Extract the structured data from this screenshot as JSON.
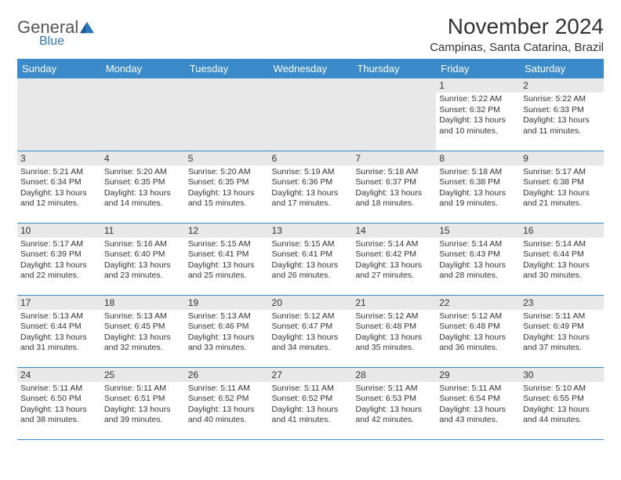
{
  "logo": {
    "general": "General",
    "blue": "Blue"
  },
  "title": "November 2024",
  "location": "Campinas, Santa Catarina, Brazil",
  "header_bg": "#3b8bca",
  "header_fg": "#ffffff",
  "daynum_bg": "#e8e8e8",
  "border_color": "#3b8bca",
  "dow": [
    "Sunday",
    "Monday",
    "Tuesday",
    "Wednesday",
    "Thursday",
    "Friday",
    "Saturday"
  ],
  "weeks": [
    [
      null,
      null,
      null,
      null,
      null,
      {
        "n": "1",
        "sr": "Sunrise: 5:22 AM",
        "ss": "Sunset: 6:32 PM",
        "d1": "Daylight: 13 hours",
        "d2": "and 10 minutes."
      },
      {
        "n": "2",
        "sr": "Sunrise: 5:22 AM",
        "ss": "Sunset: 6:33 PM",
        "d1": "Daylight: 13 hours",
        "d2": "and 11 minutes."
      }
    ],
    [
      {
        "n": "3",
        "sr": "Sunrise: 5:21 AM",
        "ss": "Sunset: 6:34 PM",
        "d1": "Daylight: 13 hours",
        "d2": "and 12 minutes."
      },
      {
        "n": "4",
        "sr": "Sunrise: 5:20 AM",
        "ss": "Sunset: 6:35 PM",
        "d1": "Daylight: 13 hours",
        "d2": "and 14 minutes."
      },
      {
        "n": "5",
        "sr": "Sunrise: 5:20 AM",
        "ss": "Sunset: 6:35 PM",
        "d1": "Daylight: 13 hours",
        "d2": "and 15 minutes."
      },
      {
        "n": "6",
        "sr": "Sunrise: 5:19 AM",
        "ss": "Sunset: 6:36 PM",
        "d1": "Daylight: 13 hours",
        "d2": "and 17 minutes."
      },
      {
        "n": "7",
        "sr": "Sunrise: 5:18 AM",
        "ss": "Sunset: 6:37 PM",
        "d1": "Daylight: 13 hours",
        "d2": "and 18 minutes."
      },
      {
        "n": "8",
        "sr": "Sunrise: 5:18 AM",
        "ss": "Sunset: 6:38 PM",
        "d1": "Daylight: 13 hours",
        "d2": "and 19 minutes."
      },
      {
        "n": "9",
        "sr": "Sunrise: 5:17 AM",
        "ss": "Sunset: 6:38 PM",
        "d1": "Daylight: 13 hours",
        "d2": "and 21 minutes."
      }
    ],
    [
      {
        "n": "10",
        "sr": "Sunrise: 5:17 AM",
        "ss": "Sunset: 6:39 PM",
        "d1": "Daylight: 13 hours",
        "d2": "and 22 minutes."
      },
      {
        "n": "11",
        "sr": "Sunrise: 5:16 AM",
        "ss": "Sunset: 6:40 PM",
        "d1": "Daylight: 13 hours",
        "d2": "and 23 minutes."
      },
      {
        "n": "12",
        "sr": "Sunrise: 5:15 AM",
        "ss": "Sunset: 6:41 PM",
        "d1": "Daylight: 13 hours",
        "d2": "and 25 minutes."
      },
      {
        "n": "13",
        "sr": "Sunrise: 5:15 AM",
        "ss": "Sunset: 6:41 PM",
        "d1": "Daylight: 13 hours",
        "d2": "and 26 minutes."
      },
      {
        "n": "14",
        "sr": "Sunrise: 5:14 AM",
        "ss": "Sunset: 6:42 PM",
        "d1": "Daylight: 13 hours",
        "d2": "and 27 minutes."
      },
      {
        "n": "15",
        "sr": "Sunrise: 5:14 AM",
        "ss": "Sunset: 6:43 PM",
        "d1": "Daylight: 13 hours",
        "d2": "and 28 minutes."
      },
      {
        "n": "16",
        "sr": "Sunrise: 5:14 AM",
        "ss": "Sunset: 6:44 PM",
        "d1": "Daylight: 13 hours",
        "d2": "and 30 minutes."
      }
    ],
    [
      {
        "n": "17",
        "sr": "Sunrise: 5:13 AM",
        "ss": "Sunset: 6:44 PM",
        "d1": "Daylight: 13 hours",
        "d2": "and 31 minutes."
      },
      {
        "n": "18",
        "sr": "Sunrise: 5:13 AM",
        "ss": "Sunset: 6:45 PM",
        "d1": "Daylight: 13 hours",
        "d2": "and 32 minutes."
      },
      {
        "n": "19",
        "sr": "Sunrise: 5:13 AM",
        "ss": "Sunset: 6:46 PM",
        "d1": "Daylight: 13 hours",
        "d2": "and 33 minutes."
      },
      {
        "n": "20",
        "sr": "Sunrise: 5:12 AM",
        "ss": "Sunset: 6:47 PM",
        "d1": "Daylight: 13 hours",
        "d2": "and 34 minutes."
      },
      {
        "n": "21",
        "sr": "Sunrise: 5:12 AM",
        "ss": "Sunset: 6:48 PM",
        "d1": "Daylight: 13 hours",
        "d2": "and 35 minutes."
      },
      {
        "n": "22",
        "sr": "Sunrise: 5:12 AM",
        "ss": "Sunset: 6:48 PM",
        "d1": "Daylight: 13 hours",
        "d2": "and 36 minutes."
      },
      {
        "n": "23",
        "sr": "Sunrise: 5:11 AM",
        "ss": "Sunset: 6:49 PM",
        "d1": "Daylight: 13 hours",
        "d2": "and 37 minutes."
      }
    ],
    [
      {
        "n": "24",
        "sr": "Sunrise: 5:11 AM",
        "ss": "Sunset: 6:50 PM",
        "d1": "Daylight: 13 hours",
        "d2": "and 38 minutes."
      },
      {
        "n": "25",
        "sr": "Sunrise: 5:11 AM",
        "ss": "Sunset: 6:51 PM",
        "d1": "Daylight: 13 hours",
        "d2": "and 39 minutes."
      },
      {
        "n": "26",
        "sr": "Sunrise: 5:11 AM",
        "ss": "Sunset: 6:52 PM",
        "d1": "Daylight: 13 hours",
        "d2": "and 40 minutes."
      },
      {
        "n": "27",
        "sr": "Sunrise: 5:11 AM",
        "ss": "Sunset: 6:52 PM",
        "d1": "Daylight: 13 hours",
        "d2": "and 41 minutes."
      },
      {
        "n": "28",
        "sr": "Sunrise: 5:11 AM",
        "ss": "Sunset: 6:53 PM",
        "d1": "Daylight: 13 hours",
        "d2": "and 42 minutes."
      },
      {
        "n": "29",
        "sr": "Sunrise: 5:11 AM",
        "ss": "Sunset: 6:54 PM",
        "d1": "Daylight: 13 hours",
        "d2": "and 43 minutes."
      },
      {
        "n": "30",
        "sr": "Sunrise: 5:10 AM",
        "ss": "Sunset: 6:55 PM",
        "d1": "Daylight: 13 hours",
        "d2": "and 44 minutes."
      }
    ]
  ]
}
